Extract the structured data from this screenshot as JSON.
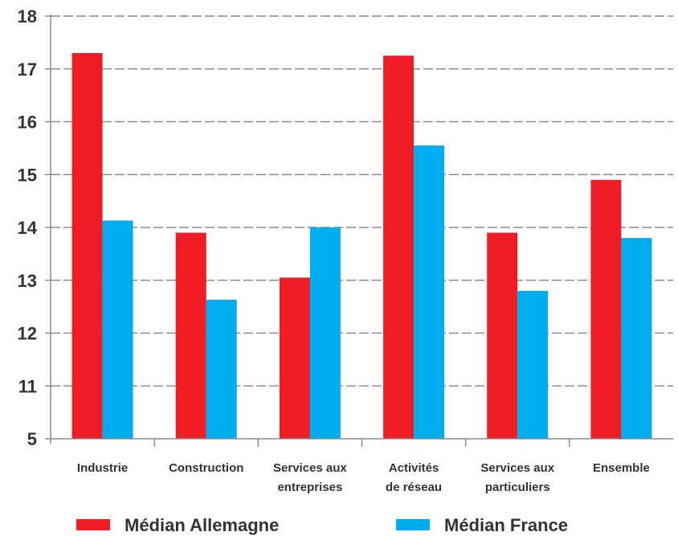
{
  "chart_data": {
    "type": "bar",
    "categories": [
      [
        "Industrie"
      ],
      [
        "Construction"
      ],
      [
        "Services aux",
        "entreprises"
      ],
      [
        "Activités",
        "de réseau"
      ],
      [
        "Services aux",
        "particuliers"
      ],
      [
        "Ensemble"
      ]
    ],
    "series": [
      {
        "name": "Médian Allemagne",
        "color": "#ee1c25",
        "values": [
          17.3,
          13.9,
          13.05,
          17.25,
          13.9,
          14.9
        ]
      },
      {
        "name": "Médian France",
        "color": "#00aeef",
        "values": [
          14.13,
          12.63,
          14.0,
          15.55,
          12.8,
          13.8
        ]
      }
    ],
    "yticks": [
      "5",
      "11",
      "12",
      "13",
      "14",
      "15",
      "16",
      "17",
      "18"
    ],
    "ylim": [
      10,
      18
    ],
    "axis_break": "5 shown at baseline (broken axis)",
    "grid": true,
    "legend": "bottom"
  }
}
